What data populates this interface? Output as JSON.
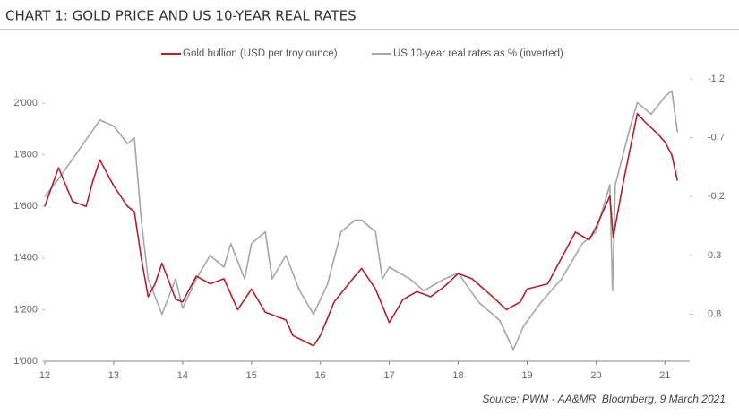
{
  "chart_data": {
    "type": "line",
    "title": "CHART 1: GOLD PRICE AND US 10-YEAR REAL RATES",
    "source": "Source: PWM - AA&MR, Bloomberg, 9 March 2021",
    "xlim": [
      12,
      21.36
    ],
    "xticks": [
      12,
      13,
      14,
      15,
      16,
      17,
      18,
      19,
      20,
      21
    ],
    "ylim": [
      1000,
      2094
    ],
    "yticks": [
      {
        "value": 1000,
        "label": "1'000"
      },
      {
        "value": 1200,
        "label": "1'200"
      },
      {
        "value": 1400,
        "label": "1'400"
      },
      {
        "value": 1600,
        "label": "1'600"
      },
      {
        "value": 1800,
        "label": "1'800"
      },
      {
        "value": 2000,
        "label": "2'000"
      }
    ],
    "y2lim": [
      1.2,
      -1.2
    ],
    "y2ticks": [
      -1.2,
      -0.7,
      -0.2,
      0.3,
      0.8
    ],
    "series": [
      {
        "name": "Gold bullion (USD per troy ounce)",
        "color": "#b0202a",
        "x": [
          12.0,
          12.2,
          12.4,
          12.6,
          12.7,
          12.8,
          13.0,
          13.2,
          13.3,
          13.4,
          13.5,
          13.6,
          13.7,
          13.9,
          14.0,
          14.2,
          14.4,
          14.6,
          14.8,
          15.0,
          15.2,
          15.5,
          15.6,
          15.9,
          16.0,
          16.2,
          16.5,
          16.6,
          16.8,
          17.0,
          17.2,
          17.4,
          17.6,
          17.8,
          18.0,
          18.2,
          18.5,
          18.7,
          18.9,
          19.0,
          19.3,
          19.5,
          19.7,
          19.9,
          20.0,
          20.2,
          20.25,
          20.4,
          20.6,
          20.7,
          20.9,
          21.0,
          21.1,
          21.18
        ],
        "values": [
          1600,
          1750,
          1620,
          1600,
          1700,
          1780,
          1680,
          1600,
          1580,
          1400,
          1250,
          1300,
          1380,
          1240,
          1230,
          1330,
          1300,
          1320,
          1200,
          1280,
          1190,
          1160,
          1100,
          1060,
          1100,
          1230,
          1330,
          1360,
          1280,
          1150,
          1240,
          1270,
          1250,
          1290,
          1340,
          1320,
          1250,
          1200,
          1230,
          1280,
          1300,
          1400,
          1500,
          1470,
          1520,
          1640,
          1480,
          1700,
          1960,
          1930,
          1880,
          1850,
          1800,
          1700
        ]
      },
      {
        "name": "US 10-year real rates as % (inverted)",
        "color": "#a6a6a6",
        "axis": "y2",
        "x": [
          12.0,
          12.2,
          12.5,
          12.8,
          13.0,
          13.2,
          13.3,
          13.4,
          13.5,
          13.7,
          13.9,
          14.0,
          14.2,
          14.4,
          14.6,
          14.7,
          14.9,
          15.0,
          15.2,
          15.3,
          15.5,
          15.7,
          15.9,
          16.1,
          16.3,
          16.5,
          16.6,
          16.8,
          16.9,
          17.0,
          17.3,
          17.5,
          17.8,
          18.0,
          18.3,
          18.6,
          18.8,
          18.95,
          19.2,
          19.5,
          19.8,
          20.0,
          20.2,
          20.24,
          20.28,
          20.5,
          20.6,
          20.8,
          21.0,
          21.1,
          21.18
        ],
        "values": [
          -0.2,
          -0.35,
          -0.6,
          -0.85,
          -0.8,
          -0.65,
          -0.7,
          0.0,
          0.5,
          0.8,
          0.5,
          0.75,
          0.5,
          0.3,
          0.4,
          0.2,
          0.5,
          0.2,
          0.1,
          0.5,
          0.3,
          0.6,
          0.8,
          0.55,
          0.1,
          0.0,
          0.0,
          0.1,
          0.5,
          0.4,
          0.5,
          0.6,
          0.5,
          0.45,
          0.7,
          0.85,
          1.1,
          0.9,
          0.7,
          0.5,
          0.2,
          0.1,
          -0.3,
          0.6,
          -0.3,
          -0.8,
          -1.0,
          -0.9,
          -1.05,
          -1.1,
          -0.75
        ]
      }
    ]
  }
}
